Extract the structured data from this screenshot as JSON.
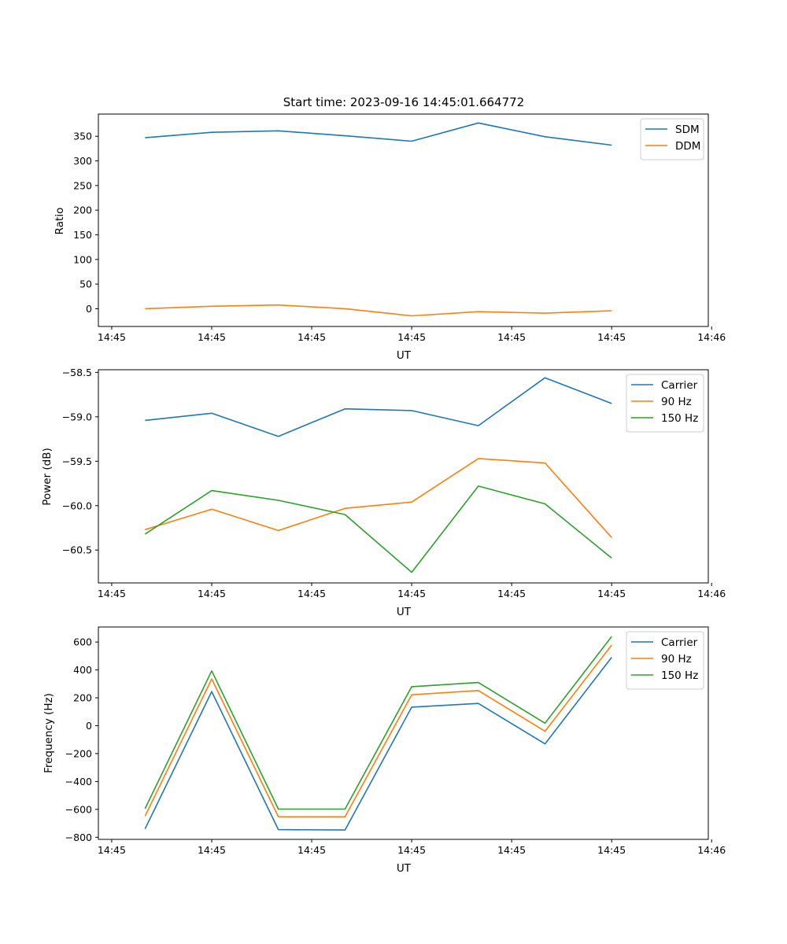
{
  "chart_data": [
    {
      "type": "line",
      "title": "Start time: 2023-09-16 14:45:01.664772",
      "xlabel": "UT",
      "ylabel": "Ratio",
      "x": [
        1,
        2,
        3,
        4,
        5,
        6,
        7,
        8
      ],
      "xlim": [
        0.3,
        9.45
      ],
      "x_ticks": [
        0.5,
        2,
        3.5,
        5,
        6.5,
        8,
        9.5
      ],
      "x_tick_labels": [
        "14:45",
        "14:45",
        "14:45",
        "14:45",
        "14:45",
        "14:45",
        "14:46"
      ],
      "ylim": [
        -36,
        395
      ],
      "y_ticks": [
        0,
        50,
        100,
        150,
        200,
        250,
        300,
        350
      ],
      "y_tick_labels": [
        "0",
        "50",
        "100",
        "150",
        "200",
        "250",
        "300",
        "350"
      ],
      "legend_position": "top-right",
      "series": [
        {
          "name": "SDM",
          "color": "#1f77b4",
          "values": [
            347,
            358,
            361,
            351,
            340,
            377,
            349,
            332
          ]
        },
        {
          "name": "DDM",
          "color": "#ff7f0e",
          "values": [
            0,
            5,
            7.5,
            0,
            -14.5,
            -6,
            -9,
            -4
          ]
        }
      ]
    },
    {
      "type": "line",
      "xlabel": "UT",
      "ylabel": "Power (dB)",
      "x": [
        1,
        2,
        3,
        4,
        5,
        6,
        7,
        8
      ],
      "xlim": [
        0.3,
        9.45
      ],
      "x_ticks": [
        0.5,
        2,
        3.5,
        5,
        6.5,
        8,
        9.5
      ],
      "x_tick_labels": [
        "14:45",
        "14:45",
        "14:45",
        "14:45",
        "14:45",
        "14:45",
        "14:46"
      ],
      "ylim": [
        -60.87,
        -58.47
      ],
      "y_ticks": [
        -60.5,
        -60.0,
        -59.5,
        -59.0,
        -58.5
      ],
      "y_tick_labels": [
        "−60.5",
        "−60.0",
        "−59.5",
        "−59.0",
        "−58.5"
      ],
      "legend_position": "top-right",
      "series": [
        {
          "name": "Carrier",
          "color": "#1f77b4",
          "values": [
            -59.04,
            -58.96,
            -59.22,
            -58.91,
            -58.93,
            -59.1,
            -58.56,
            -58.85
          ]
        },
        {
          "name": "90 Hz",
          "color": "#ff7f0e",
          "values": [
            -60.27,
            -60.04,
            -60.28,
            -60.03,
            -59.96,
            -59.47,
            -59.52,
            -60.36
          ]
        },
        {
          "name": "150 Hz",
          "color": "#2ca02c",
          "values": [
            -60.32,
            -59.83,
            -59.94,
            -60.1,
            -60.75,
            -59.78,
            -59.98,
            -60.59
          ]
        }
      ]
    },
    {
      "type": "line",
      "xlabel": "UT",
      "ylabel": "Frequency (Hz)",
      "x": [
        1,
        2,
        3,
        4,
        5,
        6,
        7,
        8
      ],
      "xlim": [
        0.3,
        9.45
      ],
      "x_ticks": [
        0.5,
        2,
        3.5,
        5,
        6.5,
        8,
        9.5
      ],
      "x_tick_labels": [
        "14:45",
        "14:45",
        "14:45",
        "14:45",
        "14:45",
        "14:45",
        "14:46"
      ],
      "ylim": [
        -815,
        708
      ],
      "y_ticks": [
        -800,
        -600,
        -400,
        -200,
        0,
        200,
        400,
        600
      ],
      "y_tick_labels": [
        "−800",
        "−600",
        "−400",
        "−200",
        "0",
        "200",
        "400",
        "600"
      ],
      "legend_position": "top-right",
      "series": [
        {
          "name": "Carrier",
          "color": "#1f77b4",
          "values": [
            -740,
            245,
            -745,
            -748,
            133,
            160,
            -130,
            490
          ]
        },
        {
          "name": "90 Hz",
          "color": "#ff7f0e",
          "values": [
            -648,
            335,
            -653,
            -653,
            222,
            252,
            -40,
            578
          ]
        },
        {
          "name": "150 Hz",
          "color": "#2ca02c",
          "values": [
            -595,
            393,
            -598,
            -598,
            280,
            310,
            18,
            640
          ]
        }
      ]
    }
  ]
}
